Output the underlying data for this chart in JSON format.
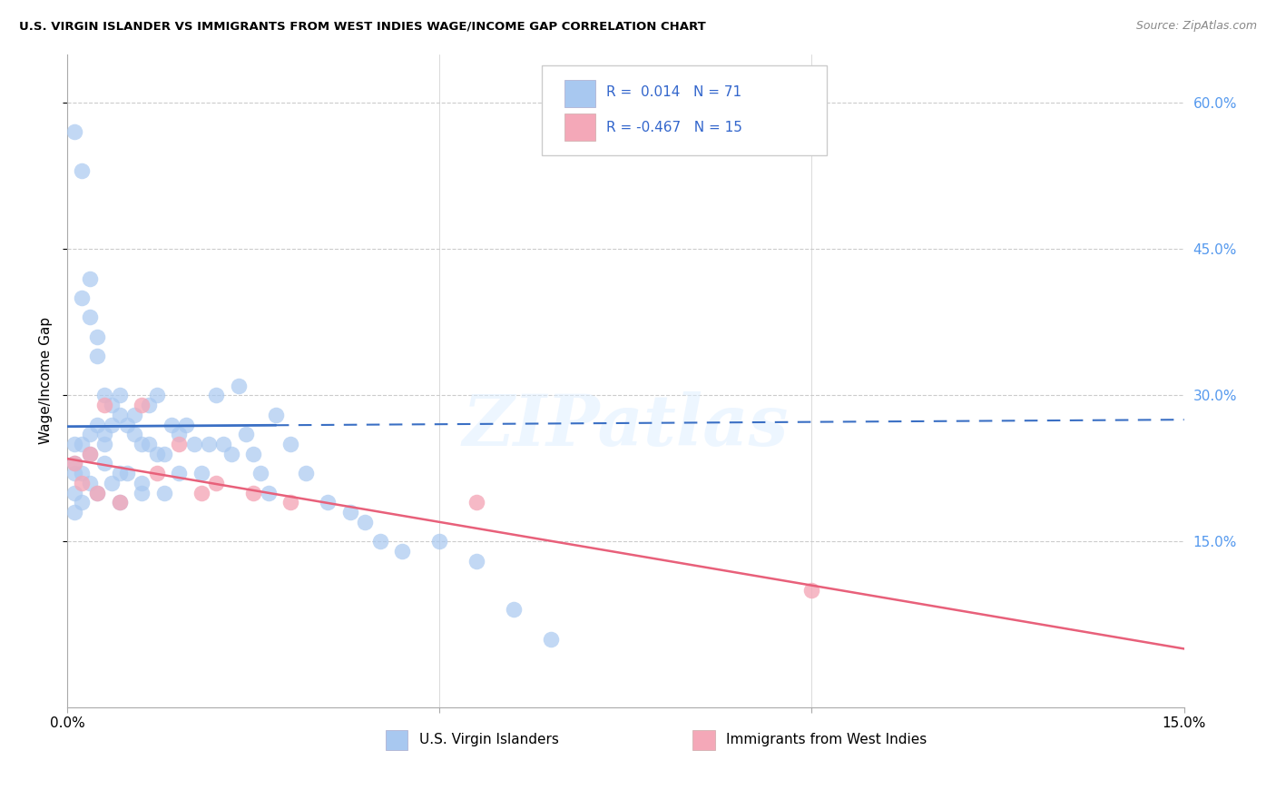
{
  "title": "U.S. VIRGIN ISLANDER VS IMMIGRANTS FROM WEST INDIES WAGE/INCOME GAP CORRELATION CHART",
  "source": "Source: ZipAtlas.com",
  "ylabel": "Wage/Income Gap",
  "R1": 0.014,
  "N1": 71,
  "R2": -0.467,
  "N2": 15,
  "blue_color": "#a8c8f0",
  "pink_color": "#f4a8b8",
  "blue_line_color": "#3a6fc4",
  "pink_line_color": "#e8607a",
  "right_tick_color": "#5599ee",
  "grid_color": "#cccccc",
  "background_color": "#ffffff",
  "watermark": "ZIPatlas",
  "legend1_label": "U.S. Virgin Islanders",
  "legend2_label": "Immigrants from West Indies",
  "blue_line_y0": 0.268,
  "blue_line_y1": 0.275,
  "blue_line_solid_end": 0.028,
  "pink_line_y0": 0.235,
  "pink_line_y1": 0.04,
  "xlim": [
    0.0,
    0.15
  ],
  "ylim": [
    -0.02,
    0.65
  ],
  "ytick_vals": [
    0.15,
    0.3,
    0.45,
    0.6
  ],
  "ytick_labels": [
    "15.0%",
    "30.0%",
    "45.0%",
    "60.0%"
  ],
  "xtick_vals": [
    0.0,
    0.05,
    0.1,
    0.15
  ],
  "xtick_labels": [
    "0.0%",
    "",
    "",
    "15.0%"
  ],
  "blue_x": [
    0.001,
    0.001,
    0.001,
    0.001,
    0.002,
    0.002,
    0.002,
    0.003,
    0.003,
    0.003,
    0.004,
    0.004,
    0.004,
    0.005,
    0.005,
    0.005,
    0.006,
    0.006,
    0.007,
    0.007,
    0.007,
    0.008,
    0.008,
    0.009,
    0.009,
    0.01,
    0.01,
    0.011,
    0.011,
    0.012,
    0.012,
    0.013,
    0.013,
    0.014,
    0.015,
    0.015,
    0.016,
    0.017,
    0.018,
    0.019,
    0.02,
    0.021,
    0.022,
    0.023,
    0.024,
    0.025,
    0.026,
    0.027,
    0.028,
    0.03,
    0.032,
    0.035,
    0.038,
    0.04,
    0.042,
    0.045,
    0.05,
    0.055,
    0.06,
    0.065,
    0.001,
    0.002,
    0.003,
    0.004,
    0.001,
    0.002,
    0.003,
    0.01,
    0.005,
    0.006,
    0.007
  ],
  "blue_y": [
    0.57,
    0.25,
    0.23,
    0.22,
    0.53,
    0.4,
    0.25,
    0.42,
    0.38,
    0.26,
    0.36,
    0.34,
    0.27,
    0.3,
    0.26,
    0.25,
    0.29,
    0.27,
    0.3,
    0.28,
    0.22,
    0.27,
    0.22,
    0.28,
    0.26,
    0.25,
    0.21,
    0.29,
    0.25,
    0.24,
    0.3,
    0.24,
    0.2,
    0.27,
    0.26,
    0.22,
    0.27,
    0.25,
    0.22,
    0.25,
    0.3,
    0.25,
    0.24,
    0.31,
    0.26,
    0.24,
    0.22,
    0.2,
    0.28,
    0.25,
    0.22,
    0.19,
    0.18,
    0.17,
    0.15,
    0.14,
    0.15,
    0.13,
    0.08,
    0.05,
    0.2,
    0.19,
    0.21,
    0.2,
    0.18,
    0.22,
    0.24,
    0.2,
    0.23,
    0.21,
    0.19
  ],
  "pink_x": [
    0.001,
    0.002,
    0.003,
    0.004,
    0.005,
    0.007,
    0.01,
    0.012,
    0.015,
    0.018,
    0.02,
    0.025,
    0.03,
    0.055,
    0.1
  ],
  "pink_y": [
    0.23,
    0.21,
    0.24,
    0.2,
    0.29,
    0.19,
    0.29,
    0.22,
    0.25,
    0.2,
    0.21,
    0.2,
    0.19,
    0.19,
    0.1
  ]
}
